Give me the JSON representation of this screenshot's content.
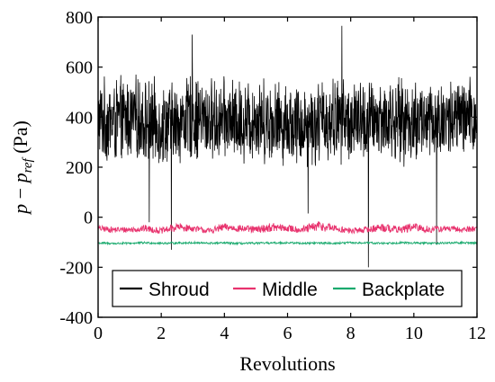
{
  "chart_data": {
    "type": "line",
    "xlabel": "Revolutions",
    "ylabel": {
      "prefix": "p − p",
      "subscript": "ref",
      "suffix": " (Pa)"
    },
    "xlim": [
      0,
      12
    ],
    "ylim": [
      -400,
      800
    ],
    "x_ticks": [
      0,
      2,
      4,
      6,
      8,
      10,
      12
    ],
    "y_ticks": [
      -400,
      -200,
      0,
      200,
      400,
      600,
      800
    ],
    "grid": false,
    "legend": {
      "placement": "bottom-center",
      "orientation": "horizontal"
    },
    "series": [
      {
        "name": "Shroud",
        "color": "#000000",
        "style": "noisy",
        "x": [
          0,
          0.5,
          1,
          1.5,
          2,
          2.5,
          3,
          3.5,
          4,
          4.5,
          5,
          5.5,
          6,
          6.5,
          7,
          7.5,
          8,
          8.5,
          9,
          9.5,
          10,
          10.5,
          11,
          11.5,
          12
        ],
        "y": [
          390,
          380,
          395,
          385,
          370,
          380,
          400,
          385,
          390,
          380,
          395,
          385,
          375,
          370,
          380,
          390,
          385,
          380,
          390,
          385,
          380,
          390,
          385,
          395,
          390
        ],
        "amplitude": [
          180,
          190,
          185,
          190,
          185,
          180,
          190,
          185,
          180,
          185,
          190,
          185,
          180,
          185,
          190,
          190,
          185,
          185,
          180,
          185,
          190,
          185,
          185,
          180,
          185
        ],
        "spikes": [
          {
            "x": 1.62,
            "y": -20
          },
          {
            "x": 2.32,
            "y": -130
          },
          {
            "x": 2.98,
            "y": 730
          },
          {
            "x": 6.65,
            "y": 15
          },
          {
            "x": 7.72,
            "y": 765
          },
          {
            "x": 8.56,
            "y": -200
          },
          {
            "x": 10.72,
            "y": -110
          }
        ]
      },
      {
        "name": "Middle",
        "color": "#e8336e",
        "style": "noisy",
        "x": [
          0,
          0.5,
          1,
          1.5,
          2,
          2.5,
          3,
          3.5,
          4,
          4.5,
          5,
          5.5,
          6,
          6.5,
          7,
          7.5,
          8,
          8.5,
          9,
          9.5,
          10,
          10.5,
          11,
          11.5,
          12
        ],
        "y": [
          -45,
          -50,
          -50,
          -45,
          -55,
          -40,
          -45,
          -55,
          -40,
          -45,
          -50,
          -40,
          -45,
          -50,
          -35,
          -45,
          -55,
          -50,
          -40,
          -50,
          -40,
          -50,
          -45,
          -50,
          -45
        ],
        "amplitude": [
          12,
          12,
          12,
          14,
          12,
          18,
          12,
          12,
          16,
          14,
          14,
          18,
          14,
          16,
          22,
          14,
          12,
          12,
          18,
          14,
          18,
          14,
          12,
          12,
          12
        ]
      },
      {
        "name": "Backplate",
        "color": "#1aaa6e",
        "style": "noisy",
        "x": [
          0,
          0.5,
          1,
          1.5,
          2,
          2.5,
          3,
          3.5,
          4,
          4.5,
          5,
          5.5,
          6,
          6.5,
          7,
          7.5,
          8,
          8.5,
          9,
          9.5,
          10,
          10.5,
          11,
          11.5,
          12
        ],
        "y": [
          -103,
          -105,
          -104,
          -102,
          -104,
          -103,
          -102,
          -104,
          -103,
          -105,
          -104,
          -103,
          -102,
          -104,
          -103,
          -104,
          -102,
          -103,
          -104,
          -102,
          -103,
          -104,
          -103,
          -102,
          -103
        ],
        "amplitude": [
          4,
          4,
          4,
          4,
          4,
          4,
          4,
          4,
          4,
          4,
          4,
          4,
          4,
          4,
          4,
          4,
          4,
          4,
          4,
          4,
          4,
          4,
          4,
          4,
          4
        ]
      }
    ]
  }
}
